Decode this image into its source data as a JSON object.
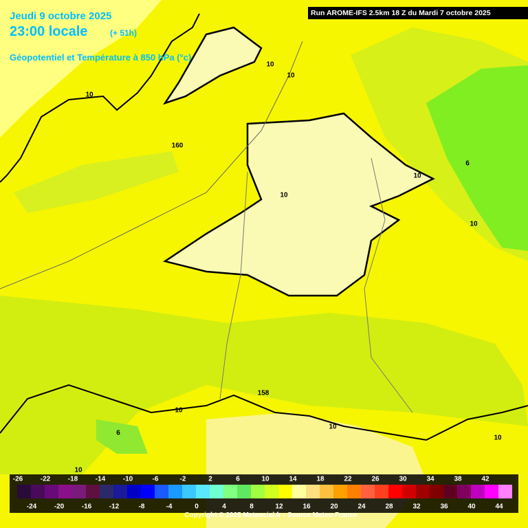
{
  "header": {
    "date": "Jeudi 9 octobre 2025",
    "time": "23:00 locale",
    "lead": "(+ 51h)",
    "parameter": "Géopotentiel et Température à 850 hPa (°c)",
    "run": "Run AROME-IFS 2.5km 18 Z du Mardi 7 octobre 2025"
  },
  "contour_labels": [
    10,
    10,
    10,
    160,
    6,
    10,
    10,
    10,
    158,
    10,
    10,
    6,
    10,
    10
  ],
  "legend": {
    "ticks": [
      -26,
      -24,
      -22,
      -20,
      -18,
      -16,
      -14,
      -12,
      -10,
      -8,
      -6,
      -4,
      -2,
      0,
      2,
      4,
      6,
      8,
      10,
      12,
      14,
      16,
      18,
      20,
      22,
      24,
      26,
      28,
      30,
      32,
      34,
      36,
      38,
      40,
      42,
      44
    ],
    "colors": [
      "#2a0a3a",
      "#4a0a5a",
      "#6a0a7a",
      "#8a108a",
      "#7a1a7a",
      "#601040",
      "#2a2a6a",
      "#1a1a9a",
      "#0000c8",
      "#0000ff",
      "#1a5aff",
      "#1a9aff",
      "#3ac8ff",
      "#5ae8ff",
      "#70ffd0",
      "#80ff80",
      "#60e860",
      "#a0ff40",
      "#d0ff20",
      "#ffff00",
      "#ffffa0",
      "#ffe080",
      "#ffc040",
      "#ffa000",
      "#ff8000",
      "#ff6040",
      "#ff4020",
      "#ff0000",
      "#d00000",
      "#a00000",
      "#800000",
      "#600020",
      "#800060",
      "#c000c0",
      "#ff00ff",
      "#ff80ff"
    ]
  },
  "copyright": "Copyright © 2025 Meteociel.fr - Source Meteo-France"
}
